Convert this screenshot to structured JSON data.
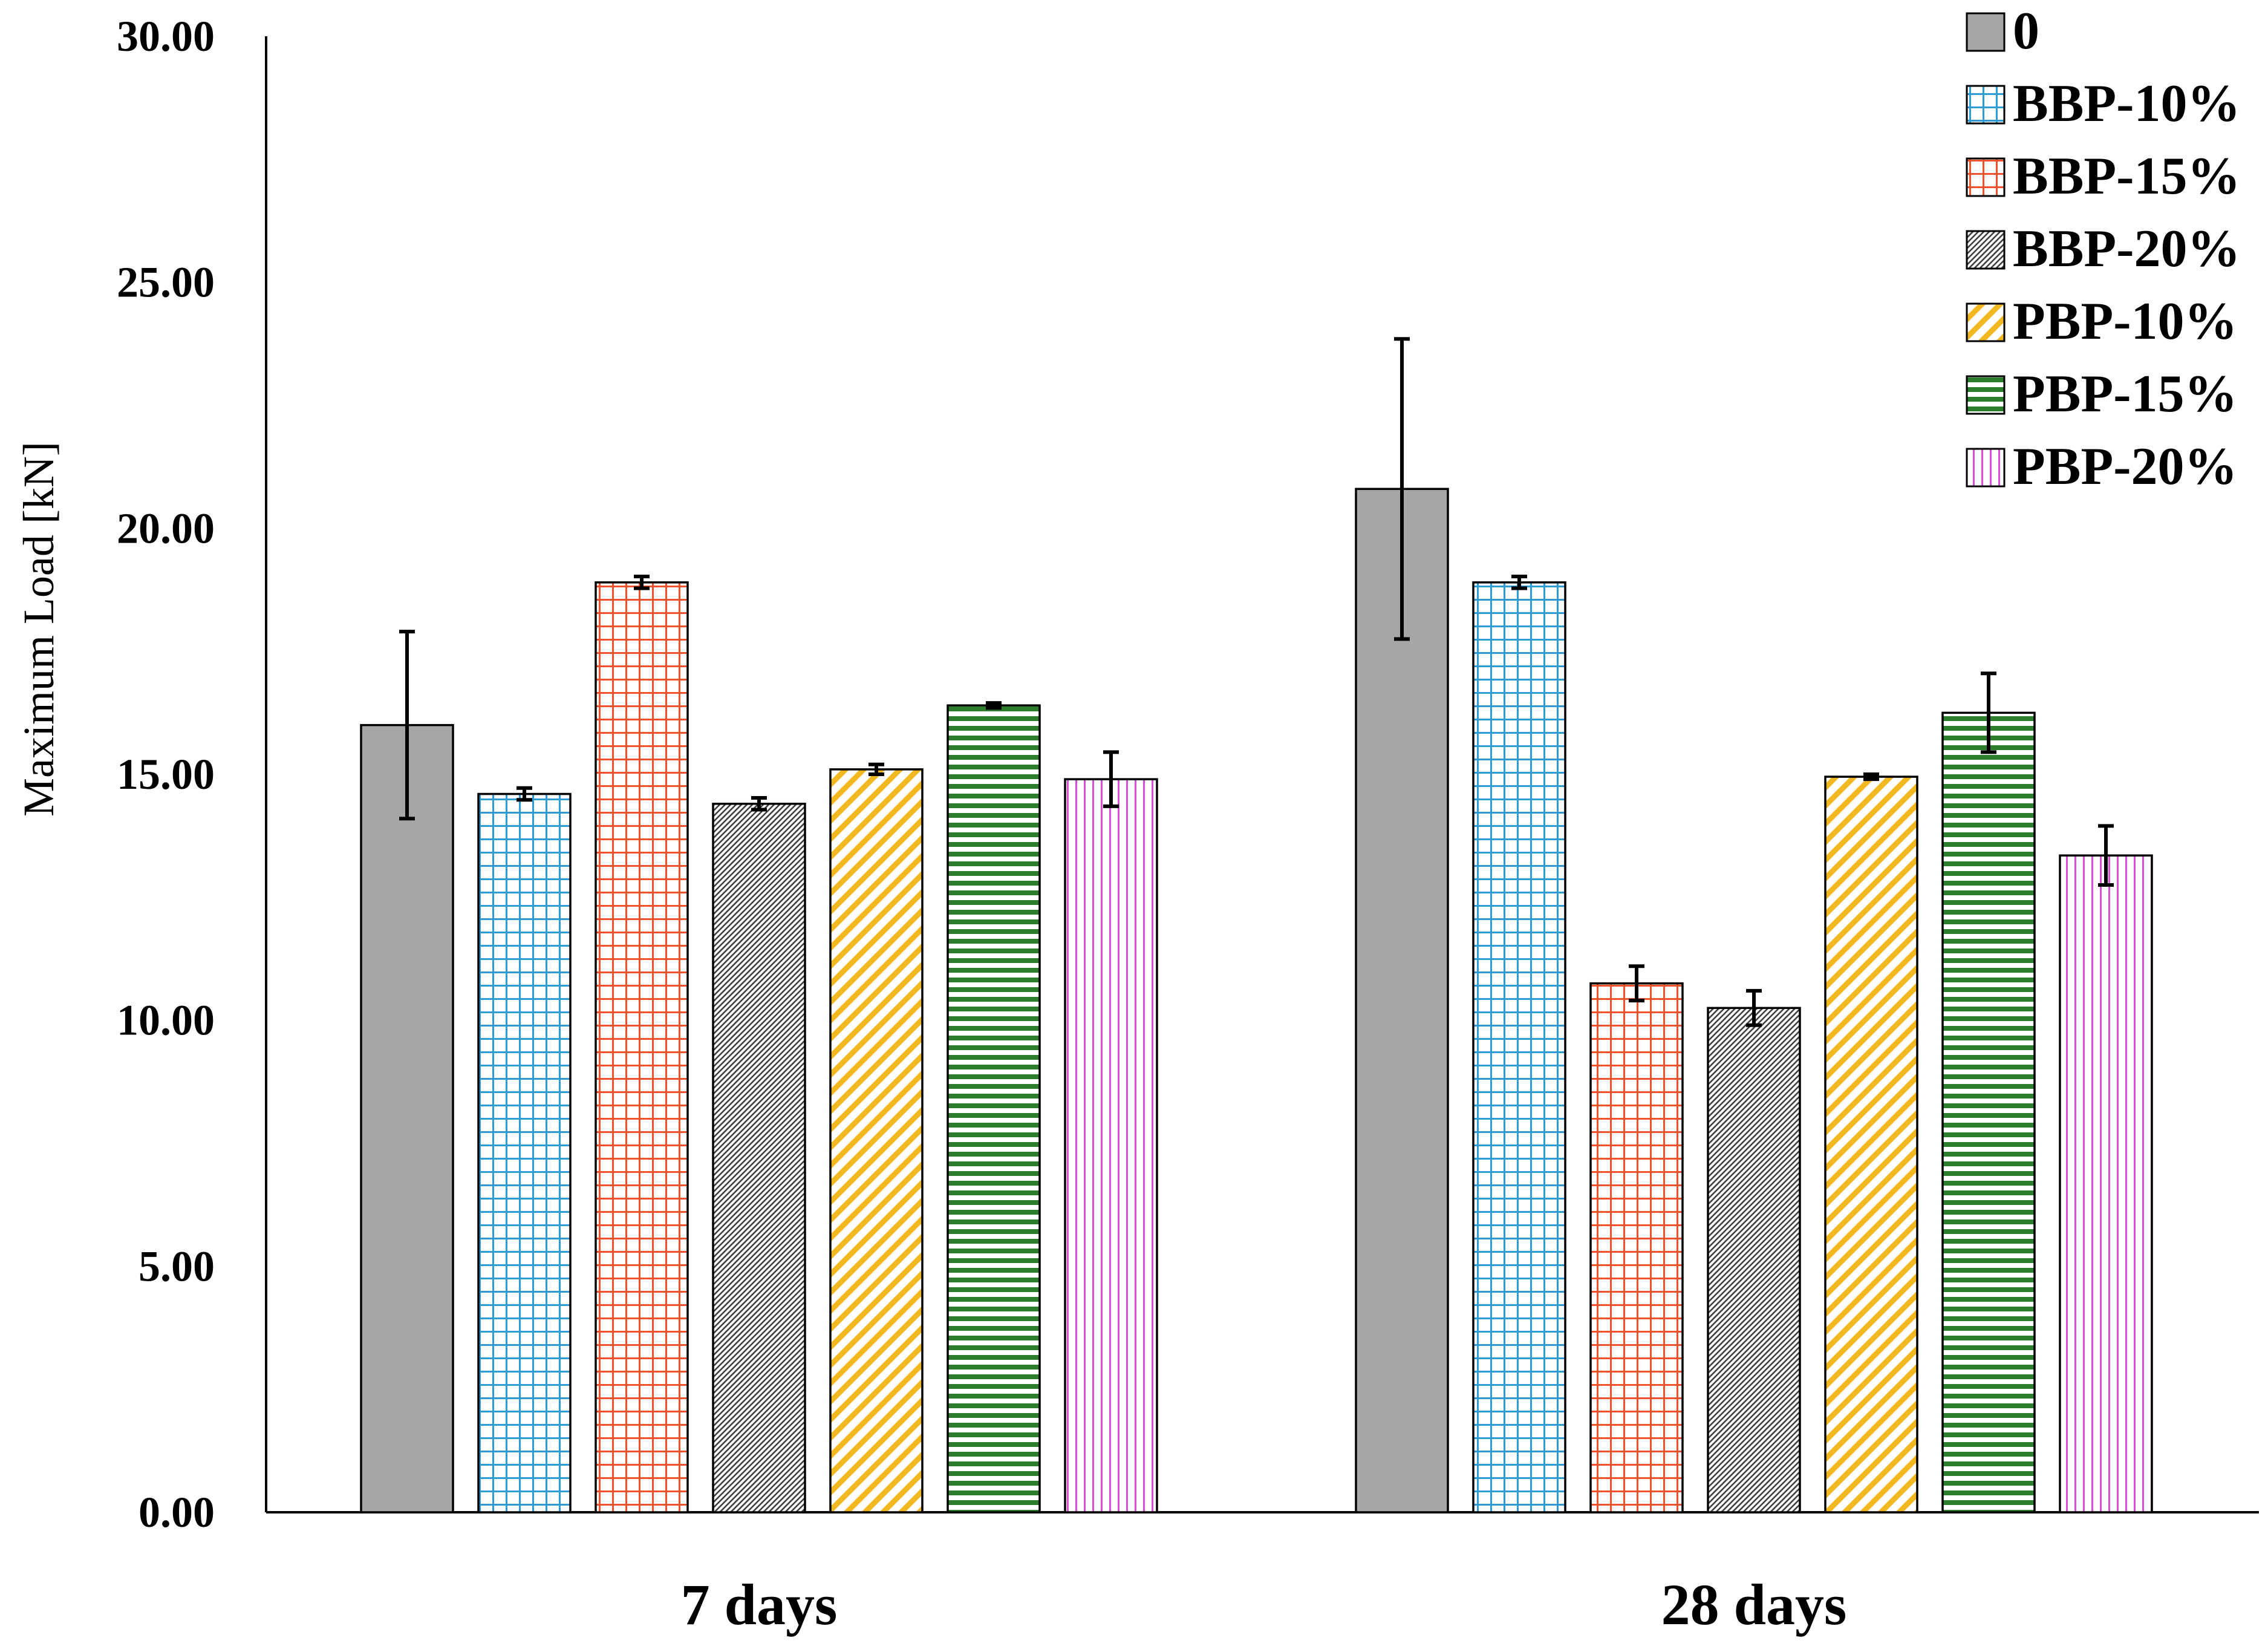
{
  "chart_data": {
    "type": "bar",
    "title": "",
    "xlabel": "",
    "ylabel": "Maximum Load [kN]",
    "ylim": [
      0,
      30
    ],
    "yticks": [
      "0.00",
      "5.00",
      "10.00",
      "15.00",
      "20.00",
      "25.00",
      "30.00"
    ],
    "grid": false,
    "legend_position": "top-right",
    "categories": [
      "7 days",
      "28 days"
    ],
    "series": [
      {
        "name": "0",
        "values": [
          16.0,
          20.8
        ],
        "errors": [
          1.9,
          3.05
        ],
        "color": "#a6a6a6",
        "pattern": "solid"
      },
      {
        "name": "BBP-10%",
        "values": [
          14.6,
          18.9
        ],
        "errors": [
          0.12,
          0.12
        ],
        "color": "#2e9bd6",
        "pattern": "grid"
      },
      {
        "name": "BBP-15%",
        "values": [
          18.9,
          10.75
        ],
        "errors": [
          0.12,
          0.35
        ],
        "color": "#f0522a",
        "pattern": "grid"
      },
      {
        "name": "BBP-20%",
        "values": [
          14.4,
          10.25
        ],
        "errors": [
          0.12,
          0.35
        ],
        "color": "#404040",
        "pattern": "dense-diagonal"
      },
      {
        "name": "PBP-10%",
        "values": [
          15.1,
          14.95
        ],
        "errors": [
          0.1,
          0.05
        ],
        "color": "#f2b81f",
        "pattern": "wide-diagonal"
      },
      {
        "name": "PBP-15%",
        "values": [
          16.4,
          16.25
        ],
        "errors": [
          0.05,
          0.8
        ],
        "color": "#2e7d2e",
        "pattern": "horizontal"
      },
      {
        "name": "PBP-20%",
        "values": [
          14.9,
          13.35
        ],
        "errors": [
          0.55,
          0.6
        ],
        "color": "#d64fd6",
        "pattern": "vertical"
      }
    ]
  }
}
